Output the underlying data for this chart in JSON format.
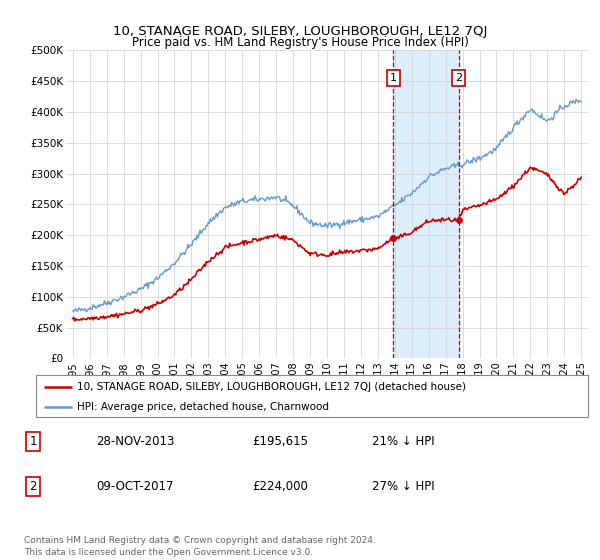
{
  "title": "10, STANAGE ROAD, SILEBY, LOUGHBOROUGH, LE12 7QJ",
  "subtitle": "Price paid vs. HM Land Registry's House Price Index (HPI)",
  "legend_line1": "10, STANAGE ROAD, SILEBY, LOUGHBOROUGH, LE12 7QJ (detached house)",
  "legend_line2": "HPI: Average price, detached house, Charnwood",
  "annotation1_label": "1",
  "annotation1_date": "28-NOV-2013",
  "annotation1_price": "£195,615",
  "annotation1_pct": "21% ↓ HPI",
  "annotation2_label": "2",
  "annotation2_date": "09-OCT-2017",
  "annotation2_price": "£224,000",
  "annotation2_pct": "27% ↓ HPI",
  "footer": "Contains HM Land Registry data © Crown copyright and database right 2024.\nThis data is licensed under the Open Government Licence v3.0.",
  "hpi_color": "#6699cc",
  "price_color": "#cc0000",
  "shade_color": "#ddeeff",
  "vline_color": "#cc0000",
  "annotation_box_color": "#cc0000",
  "ylim": [
    0,
    500000
  ],
  "yticks": [
    0,
    50000,
    100000,
    150000,
    200000,
    250000,
    300000,
    350000,
    400000,
    450000,
    500000
  ],
  "ytick_labels": [
    "£0",
    "£50K",
    "£100K",
    "£150K",
    "£200K",
    "£250K",
    "£300K",
    "£350K",
    "£400K",
    "£450K",
    "£500K"
  ],
  "sale1_x": 2013.91,
  "sale1_y": 195615,
  "sale2_x": 2017.77,
  "sale2_y": 224000,
  "xmin": 1994.6,
  "xmax": 2025.4,
  "hpi_anchors_x": [
    1995,
    1996,
    1997,
    1998,
    1999,
    2000,
    2001,
    2002,
    2003,
    2004,
    2005,
    2006,
    2007,
    2008,
    2009,
    2010,
    2011,
    2012,
    2013,
    2014,
    2015,
    2016,
    2017,
    2018,
    2019,
    2020,
    2021,
    2022,
    2023,
    2024,
    2025
  ],
  "hpi_anchors_y": [
    76000,
    82000,
    90000,
    100000,
    112000,
    130000,
    155000,
    185000,
    220000,
    245000,
    255000,
    258000,
    262000,
    248000,
    220000,
    215000,
    220000,
    225000,
    230000,
    248000,
    268000,
    295000,
    308000,
    315000,
    325000,
    340000,
    375000,
    405000,
    385000,
    410000,
    420000
  ],
  "price_anchors_x": [
    1995,
    1996,
    1997,
    1998,
    1999,
    2000,
    2001,
    2002,
    2003,
    2004,
    2005,
    2006,
    2007,
    2008,
    2009,
    2010,
    2011,
    2012,
    2013,
    2013.91,
    2014,
    2015,
    2016,
    2017,
    2017.77,
    2018,
    2019,
    2020,
    2021,
    2022,
    2023,
    2024,
    2025
  ],
  "price_anchors_y": [
    63000,
    65000,
    68000,
    72000,
    78000,
    88000,
    103000,
    128000,
    158000,
    180000,
    188000,
    193000,
    200000,
    192000,
    170000,
    168000,
    172000,
    175000,
    178000,
    195615,
    193000,
    205000,
    223000,
    225000,
    224000,
    240000,
    248000,
    258000,
    280000,
    310000,
    298000,
    267000,
    293000
  ]
}
